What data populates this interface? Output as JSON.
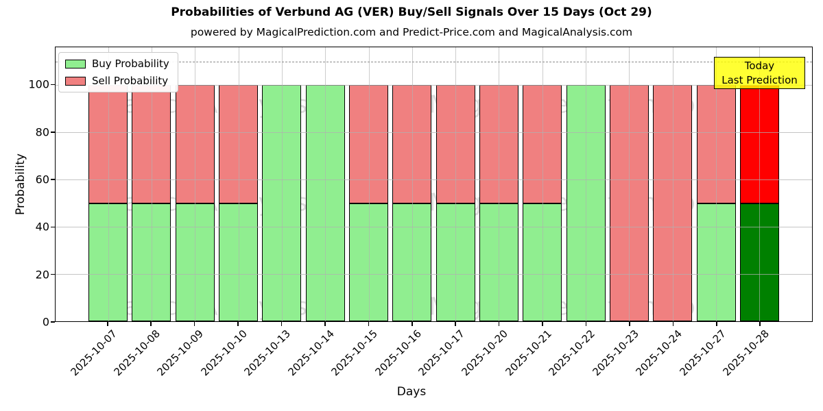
{
  "title": "Probabilities of Verbund AG (VER) Buy/Sell Signals Over 15 Days (Oct 29)",
  "subtitle": "powered by MagicalPrediction.com and Predict-Price.com and MagicalAnalysis.com",
  "legend": {
    "items": [
      {
        "label": "Buy Probability",
        "color_key": "buy"
      },
      {
        "label": "Sell Probability",
        "color_key": "sell"
      }
    ]
  },
  "annotation": {
    "line1": "Today",
    "line2": "Last Prediction"
  },
  "watermarks": [
    "MagicalAnalysis.com",
    "MagicalPrediction.com"
  ],
  "chart_data": {
    "type": "bar",
    "stacked": true,
    "title": "Probabilities of Verbund AG (VER) Buy/Sell Signals Over 15 Days (Oct 29)",
    "xlabel": "Days",
    "ylabel": "Probability",
    "categories": [
      "2025-10-07",
      "2025-10-08",
      "2025-10-09",
      "2025-10-10",
      "2025-10-13",
      "2025-10-14",
      "2025-10-15",
      "2025-10-16",
      "2025-10-17",
      "2025-10-20",
      "2025-10-21",
      "2025-10-22",
      "2025-10-23",
      "2025-10-24",
      "2025-10-27",
      "2025-10-28"
    ],
    "series": [
      {
        "name": "Buy Probability",
        "values": [
          50,
          50,
          50,
          50,
          100,
          100,
          50,
          50,
          50,
          50,
          50,
          100,
          0,
          0,
          50,
          50
        ]
      },
      {
        "name": "Sell Probability",
        "values": [
          50,
          50,
          50,
          50,
          0,
          0,
          50,
          50,
          50,
          50,
          50,
          0,
          100,
          100,
          50,
          50
        ]
      }
    ],
    "today_index": 15,
    "yticks": [
      0,
      20,
      40,
      60,
      80,
      100
    ],
    "ylim": [
      0,
      116
    ],
    "dashed_line_y": 110,
    "grid": true,
    "legend_position": "upper left"
  },
  "colors": {
    "buy": "#90ee90",
    "sell": "#f08080",
    "buy_today": "#008000",
    "sell_today": "#ff0000",
    "bar_edge": "#000000",
    "grid": "#b0b0b0",
    "dashed": "#8a8a8a",
    "annotation_bg": "#ffff00",
    "annotation_border": "#000000",
    "watermark_gray": "#808080"
  }
}
